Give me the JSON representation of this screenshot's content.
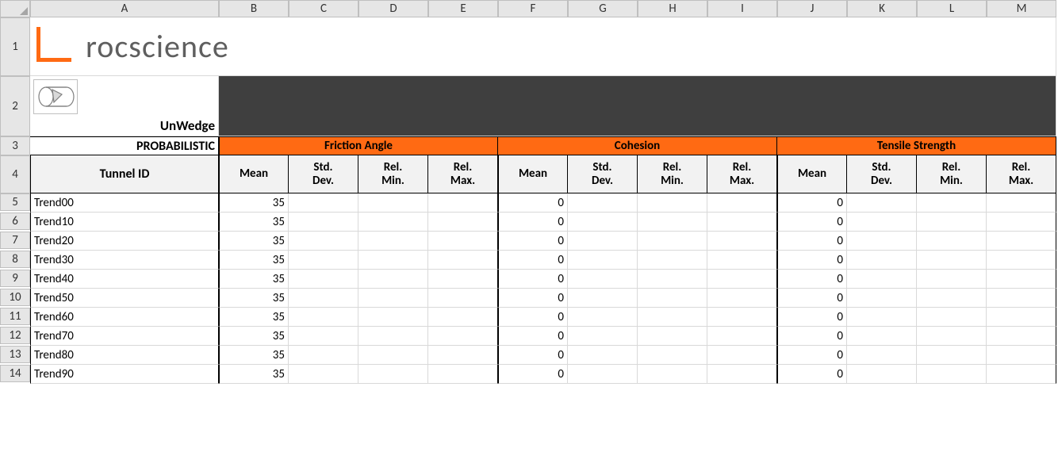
{
  "columns": [
    "A",
    "B",
    "C",
    "D",
    "E",
    "F",
    "G",
    "H",
    "I",
    "J",
    "K",
    "L",
    "M"
  ],
  "brand": {
    "name": "rocscience"
  },
  "product": {
    "name": "UnWedge"
  },
  "section_label": "PROBABILISTIC",
  "groups": [
    "Friction Angle",
    "Cohesion",
    "Tensile Strength"
  ],
  "tunnel_header": "Tunnel ID",
  "sub_headers": [
    "Mean",
    "Std. Dev.",
    "Rel. Min.",
    "Rel. Max."
  ],
  "rows": [
    {
      "n": 5,
      "id": "Trend00",
      "fa_mean": 35,
      "co_mean": 0,
      "ts_mean": 0
    },
    {
      "n": 6,
      "id": "Trend10",
      "fa_mean": 35,
      "co_mean": 0,
      "ts_mean": 0
    },
    {
      "n": 7,
      "id": "Trend20",
      "fa_mean": 35,
      "co_mean": 0,
      "ts_mean": 0
    },
    {
      "n": 8,
      "id": "Trend30",
      "fa_mean": 35,
      "co_mean": 0,
      "ts_mean": 0
    },
    {
      "n": 9,
      "id": "Trend40",
      "fa_mean": 35,
      "co_mean": 0,
      "ts_mean": 0
    },
    {
      "n": 10,
      "id": "Trend50",
      "fa_mean": 35,
      "co_mean": 0,
      "ts_mean": 0
    },
    {
      "n": 11,
      "id": "Trend60",
      "fa_mean": 35,
      "co_mean": 0,
      "ts_mean": 0
    },
    {
      "n": 12,
      "id": "Trend70",
      "fa_mean": 35,
      "co_mean": 0,
      "ts_mean": 0
    },
    {
      "n": 13,
      "id": "Trend80",
      "fa_mean": 35,
      "co_mean": 0,
      "ts_mean": 0
    },
    {
      "n": 14,
      "id": "Trend90",
      "fa_mean": 35,
      "co_mean": 0,
      "ts_mean": 0
    }
  ],
  "colors": {
    "orange": "#ff6a13",
    "dark": "#3f3f3f",
    "header_bg": "#e6e6e6",
    "grid": "#d9d9d9",
    "sub_bg": "#f2f2f2"
  }
}
